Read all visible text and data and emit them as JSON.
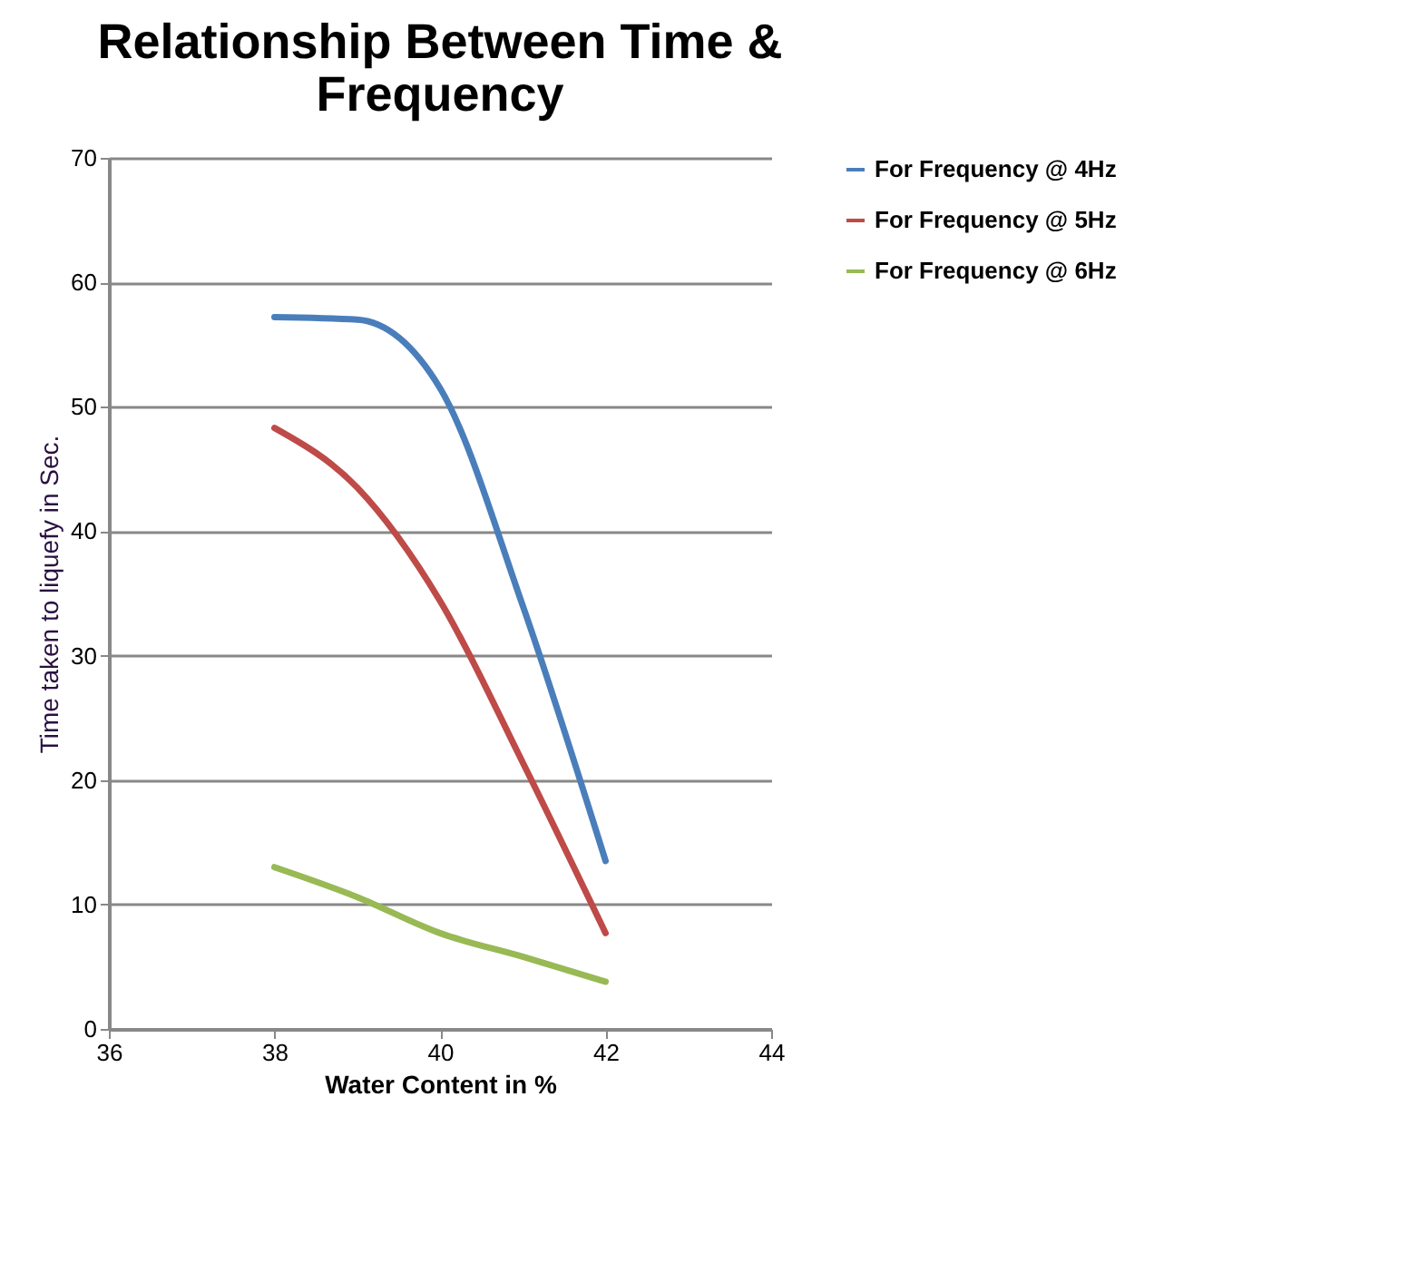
{
  "chart_data": {
    "type": "line",
    "title": "Relationship Between Time & Frequency",
    "xlabel": "Water Content in %",
    "ylabel": "Time taken to liquefy in Sec.",
    "x": [
      38,
      39,
      40,
      41,
      42
    ],
    "series": [
      {
        "name": "For Frequency  @ 4Hz",
        "color": "#4a7ebb",
        "values": [
          57.2,
          57,
          51.5,
          34,
          13.5
        ]
      },
      {
        "name": "For Frequency  @ 5Hz",
        "color": "#be4b48",
        "values": [
          48.3,
          43.5,
          34.4,
          21.4,
          7.7
        ]
      },
      {
        "name": "For Frequency  @ 6Hz",
        "color": "#98b954",
        "values": [
          13,
          10.6,
          7.7,
          5.8,
          3.8
        ]
      }
    ],
    "xlim": [
      36,
      44
    ],
    "xticks": [
      36,
      38,
      40,
      42,
      44
    ],
    "ylim": [
      0,
      70
    ],
    "yticks": [
      0,
      10,
      20,
      30,
      40,
      50,
      60,
      70
    ],
    "grid": "y",
    "legend": "right",
    "marker": "none",
    "line_style": "solid"
  }
}
